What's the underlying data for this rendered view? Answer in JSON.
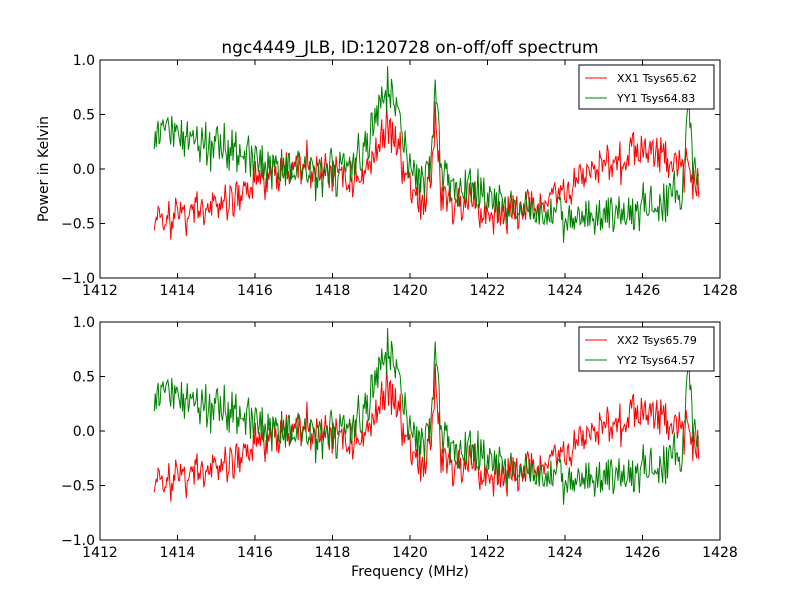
{
  "chart_data": [
    {
      "type": "line",
      "title": "ngc4449_JLB, ID:120728 on-off/off spectrum",
      "xlabel": "",
      "ylabel": "Power in Kelvin",
      "xlim": [
        1412,
        1428
      ],
      "ylim": [
        -1.0,
        1.0
      ],
      "xticks": [
        "1412",
        "1414",
        "1416",
        "1418",
        "1420",
        "1422",
        "1424",
        "1426",
        "1428"
      ],
      "yticks": [
        "−1.0",
        "−0.5",
        "0.0",
        "0.5",
        "1.0"
      ],
      "grid": false,
      "legend_position": "top-right",
      "series": [
        {
          "name": "XX1 Tsys65.62",
          "color": "#ff0000",
          "x": [
            1413.4,
            1413.8,
            1414.2,
            1414.6,
            1415.0,
            1415.4,
            1415.8,
            1416.2,
            1416.6,
            1417.0,
            1417.4,
            1417.8,
            1418.2,
            1418.6,
            1418.9,
            1419.1,
            1419.3,
            1419.45,
            1419.6,
            1419.8,
            1420.0,
            1420.2,
            1420.4,
            1420.55,
            1420.65,
            1420.8,
            1421.0,
            1421.4,
            1421.8,
            1422.2,
            1422.6,
            1423.0,
            1423.4,
            1423.8,
            1424.2,
            1424.6,
            1425.0,
            1425.4,
            1425.8,
            1426.2,
            1426.6,
            1427.0,
            1427.3,
            1427.45
          ],
          "y": [
            -0.5,
            -0.45,
            -0.42,
            -0.38,
            -0.35,
            -0.3,
            -0.2,
            -0.08,
            -0.02,
            0.0,
            0.02,
            0.0,
            -0.05,
            -0.08,
            0.0,
            0.15,
            0.32,
            0.4,
            0.3,
            0.1,
            -0.15,
            -0.25,
            -0.3,
            0.0,
            0.45,
            -0.2,
            -0.3,
            -0.35,
            -0.4,
            -0.42,
            -0.42,
            -0.38,
            -0.32,
            -0.25,
            -0.15,
            -0.05,
            0.05,
            0.12,
            0.15,
            0.15,
            0.12,
            0.05,
            -0.05,
            -0.1
          ],
          "noise": 0.1
        },
        {
          "name": "YY1 Tsys64.83",
          "color": "#008000",
          "x": [
            1413.4,
            1413.8,
            1414.2,
            1414.6,
            1415.0,
            1415.4,
            1415.8,
            1416.2,
            1416.6,
            1417.0,
            1417.4,
            1417.8,
            1418.2,
            1418.6,
            1418.9,
            1419.1,
            1419.3,
            1419.45,
            1419.6,
            1419.8,
            1420.0,
            1420.2,
            1420.4,
            1420.55,
            1420.65,
            1420.8,
            1421.0,
            1421.4,
            1421.8,
            1422.2,
            1422.6,
            1423.0,
            1423.4,
            1423.8,
            1424.2,
            1424.6,
            1425.0,
            1425.4,
            1425.8,
            1426.2,
            1426.6,
            1427.0,
            1427.2,
            1427.3,
            1427.45
          ],
          "y": [
            0.35,
            0.33,
            0.3,
            0.28,
            0.25,
            0.2,
            0.12,
            0.05,
            0.02,
            0.0,
            -0.02,
            -0.02,
            0.0,
            0.05,
            0.2,
            0.45,
            0.68,
            0.75,
            0.6,
            0.25,
            0.05,
            -0.05,
            -0.1,
            0.1,
            0.8,
            0.0,
            -0.1,
            -0.15,
            -0.22,
            -0.3,
            -0.35,
            -0.38,
            -0.42,
            -0.45,
            -0.48,
            -0.45,
            -0.42,
            -0.4,
            -0.38,
            -0.35,
            -0.3,
            -0.2,
            0.55,
            0.05,
            0.0
          ],
          "noise": 0.1
        }
      ]
    },
    {
      "type": "line",
      "title": "",
      "xlabel": "Frequency (MHz)",
      "ylabel": "",
      "xlim": [
        1412,
        1428
      ],
      "ylim": [
        -1.0,
        1.0
      ],
      "xticks": [
        "1412",
        "1414",
        "1416",
        "1418",
        "1420",
        "1422",
        "1424",
        "1426",
        "1428"
      ],
      "yticks": [
        "−1.0",
        "−0.5",
        "0.0",
        "0.5",
        "1.0"
      ],
      "grid": false,
      "legend_position": "top-right",
      "series": [
        {
          "name": "XX2 Tsys65.79",
          "color": "#ff0000",
          "x": [
            1413.4,
            1413.8,
            1414.2,
            1414.6,
            1415.0,
            1415.4,
            1415.8,
            1416.2,
            1416.6,
            1417.0,
            1417.4,
            1417.8,
            1418.2,
            1418.6,
            1418.9,
            1419.1,
            1419.3,
            1419.45,
            1419.6,
            1419.8,
            1420.0,
            1420.2,
            1420.4,
            1420.55,
            1420.65,
            1420.8,
            1421.0,
            1421.4,
            1421.8,
            1422.2,
            1422.6,
            1423.0,
            1423.4,
            1423.8,
            1424.2,
            1424.6,
            1425.0,
            1425.4,
            1425.8,
            1426.2,
            1426.6,
            1427.0,
            1427.3,
            1427.45
          ],
          "y": [
            -0.5,
            -0.45,
            -0.42,
            -0.38,
            -0.35,
            -0.3,
            -0.2,
            -0.08,
            -0.02,
            0.0,
            0.02,
            0.0,
            -0.05,
            -0.08,
            0.0,
            0.15,
            0.32,
            0.4,
            0.3,
            0.1,
            -0.15,
            -0.25,
            -0.3,
            0.0,
            0.45,
            -0.2,
            -0.3,
            -0.35,
            -0.4,
            -0.42,
            -0.42,
            -0.38,
            -0.32,
            -0.25,
            -0.15,
            -0.05,
            0.05,
            0.12,
            0.15,
            0.15,
            0.12,
            0.05,
            -0.05,
            -0.1
          ],
          "noise": 0.1
        },
        {
          "name": "YY2 Tsys64.57",
          "color": "#008000",
          "x": [
            1413.4,
            1413.8,
            1414.2,
            1414.6,
            1415.0,
            1415.4,
            1415.8,
            1416.2,
            1416.6,
            1417.0,
            1417.4,
            1417.8,
            1418.2,
            1418.6,
            1418.9,
            1419.1,
            1419.3,
            1419.45,
            1419.6,
            1419.8,
            1420.0,
            1420.2,
            1420.4,
            1420.55,
            1420.65,
            1420.8,
            1421.0,
            1421.4,
            1421.8,
            1422.2,
            1422.6,
            1423.0,
            1423.4,
            1423.8,
            1424.2,
            1424.6,
            1425.0,
            1425.4,
            1425.8,
            1426.2,
            1426.6,
            1427.0,
            1427.2,
            1427.3,
            1427.45
          ],
          "y": [
            0.35,
            0.33,
            0.3,
            0.28,
            0.25,
            0.2,
            0.12,
            0.05,
            0.02,
            0.0,
            -0.02,
            -0.02,
            0.0,
            0.05,
            0.2,
            0.45,
            0.68,
            0.75,
            0.6,
            0.25,
            0.05,
            -0.05,
            -0.1,
            0.1,
            0.8,
            0.0,
            -0.1,
            -0.15,
            -0.22,
            -0.3,
            -0.35,
            -0.38,
            -0.42,
            -0.45,
            -0.48,
            -0.45,
            -0.42,
            -0.4,
            -0.38,
            -0.35,
            -0.3,
            -0.2,
            0.55,
            0.05,
            0.0
          ],
          "noise": 0.1
        }
      ]
    }
  ]
}
